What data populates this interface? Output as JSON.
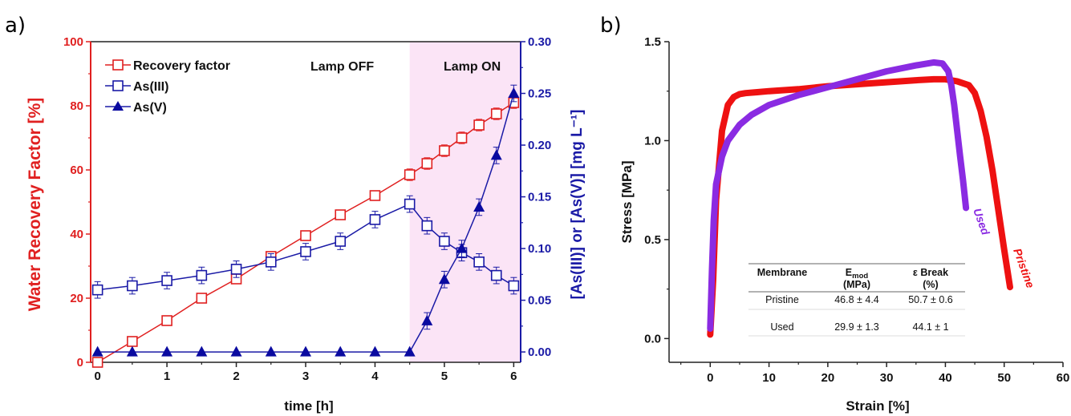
{
  "panels": {
    "a_label": "a)",
    "b_label": "b)"
  },
  "chart_data": [
    {
      "type": "line",
      "xlabel": "time [h]",
      "ylabel_left": "Water Recovery Factor [%]",
      "ylabel_right": "[As(III)] or [As(V)] [mg L⁻¹]",
      "xlim": [
        -0.1,
        6.1
      ],
      "ylim_left": [
        0,
        100
      ],
      "ylim_right": [
        -0.01,
        0.3
      ],
      "xticks": [
        "0",
        "1",
        "2",
        "3",
        "4",
        "5",
        "6"
      ],
      "yticks_left": [
        "0",
        "20",
        "40",
        "60",
        "80",
        "100"
      ],
      "yticks_right": [
        "0.00",
        "0.05",
        "0.10",
        "0.15",
        "0.20",
        "0.25",
        "0.30"
      ],
      "shaded_region": {
        "x": [
          4.5,
          6.1
        ],
        "color": "#fbe4f6"
      },
      "annotations": [
        "Lamp OFF",
        "Lamp ON"
      ],
      "legend_position": "top-left",
      "colors": {
        "red": "#e02020",
        "blue": "#1a1aa6",
        "dark_blue": "#0a0aa0"
      },
      "series": [
        {
          "name": "Recovery factor",
          "axis": "left",
          "marker": "open-square",
          "x": [
            0,
            0.5,
            1,
            1.5,
            2,
            2.5,
            3,
            3.5,
            4,
            4.5,
            4.75,
            5,
            5.25,
            5.5,
            5.75,
            6
          ],
          "y": [
            0,
            6.5,
            13,
            20,
            26,
            33,
            39.5,
            46,
            52,
            58.5,
            62,
            66,
            70,
            74,
            77.5,
            81
          ],
          "err": [
            0,
            0.8,
            0.8,
            0.8,
            1,
            1,
            1,
            1,
            1.2,
            1.8,
            1.8,
            1.8,
            1.8,
            1.8,
            1.8,
            1.8
          ]
        },
        {
          "name": "As(III)",
          "axis": "right",
          "marker": "open-square",
          "x": [
            0,
            0.5,
            1,
            1.5,
            2,
            2.5,
            3,
            3.5,
            4,
            4.5,
            4.75,
            5,
            5.25,
            5.5,
            5.75,
            6
          ],
          "y": [
            0.06,
            0.064,
            0.069,
            0.074,
            0.08,
            0.087,
            0.097,
            0.107,
            0.128,
            0.143,
            0.122,
            0.107,
            0.096,
            0.087,
            0.074,
            0.064
          ],
          "err": [
            0.008,
            0.008,
            0.008,
            0.008,
            0.008,
            0.008,
            0.008,
            0.008,
            0.008,
            0.008,
            0.008,
            0.008,
            0.008,
            0.008,
            0.008,
            0.008
          ]
        },
        {
          "name": "As(V)",
          "axis": "right",
          "marker": "filled-triangle",
          "x": [
            0,
            0.5,
            1,
            1.5,
            2,
            2.5,
            3,
            3.5,
            4,
            4.5,
            4.75,
            5,
            5.25,
            5.5,
            5.75,
            6
          ],
          "y": [
            0,
            0,
            0,
            0,
            0,
            0,
            0,
            0,
            0,
            0,
            0.03,
            0.07,
            0.1,
            0.14,
            0.19,
            0.25
          ],
          "err": [
            0,
            0,
            0,
            0,
            0,
            0,
            0,
            0,
            0,
            0,
            0.008,
            0.008,
            0.008,
            0.008,
            0.008,
            0.008
          ]
        }
      ]
    },
    {
      "type": "line",
      "xlabel": "Strain [%]",
      "ylabel": "Stress [MPa]",
      "xlim": [
        -7,
        60
      ],
      "ylim": [
        -0.12,
        1.5
      ],
      "xticks": [
        "0",
        "10",
        "20",
        "30",
        "40",
        "50",
        "60"
      ],
      "yticks": [
        "0.0",
        "0.5",
        "1.0",
        "1.5"
      ],
      "colors": {
        "pristine": "#ee1111",
        "used": "#8a2be2"
      },
      "series": [
        {
          "name": "Pristine",
          "x": [
            0,
            0.5,
            1,
            2,
            3,
            4,
            5,
            6,
            8,
            10,
            15,
            20,
            25,
            30,
            35,
            38,
            40,
            42,
            44,
            45,
            46,
            47,
            48,
            49,
            50,
            51
          ],
          "y": [
            0.02,
            0.3,
            0.7,
            1.05,
            1.18,
            1.22,
            1.235,
            1.24,
            1.245,
            1.25,
            1.26,
            1.275,
            1.285,
            1.295,
            1.305,
            1.31,
            1.31,
            1.3,
            1.28,
            1.24,
            1.15,
            1.02,
            0.85,
            0.65,
            0.45,
            0.26
          ]
        },
        {
          "name": "Used",
          "x": [
            0,
            0.3,
            0.6,
            1,
            2,
            3,
            5,
            7,
            10,
            15,
            20,
            25,
            30,
            35,
            38,
            39.5,
            40.5,
            41,
            41.5,
            42,
            42.5,
            43,
            43.5
          ],
          "y": [
            0.05,
            0.35,
            0.6,
            0.78,
            0.92,
            1.0,
            1.08,
            1.13,
            1.18,
            1.23,
            1.27,
            1.31,
            1.35,
            1.38,
            1.395,
            1.39,
            1.35,
            1.28,
            1.18,
            1.05,
            0.92,
            0.8,
            0.66
          ]
        }
      ],
      "table": {
        "headers": [
          [
            "Membrane",
            ""
          ],
          [
            "E",
            "mod",
            "(MPa)"
          ],
          [
            "ε Break",
            "(%)"
          ]
        ],
        "rows": [
          [
            "Pristine",
            "46.8 ± 4.4",
            "50.7 ± 0.6"
          ],
          [
            "Used",
            "29.9 ± 1.3",
            "44.1 ± 1"
          ]
        ]
      }
    }
  ]
}
